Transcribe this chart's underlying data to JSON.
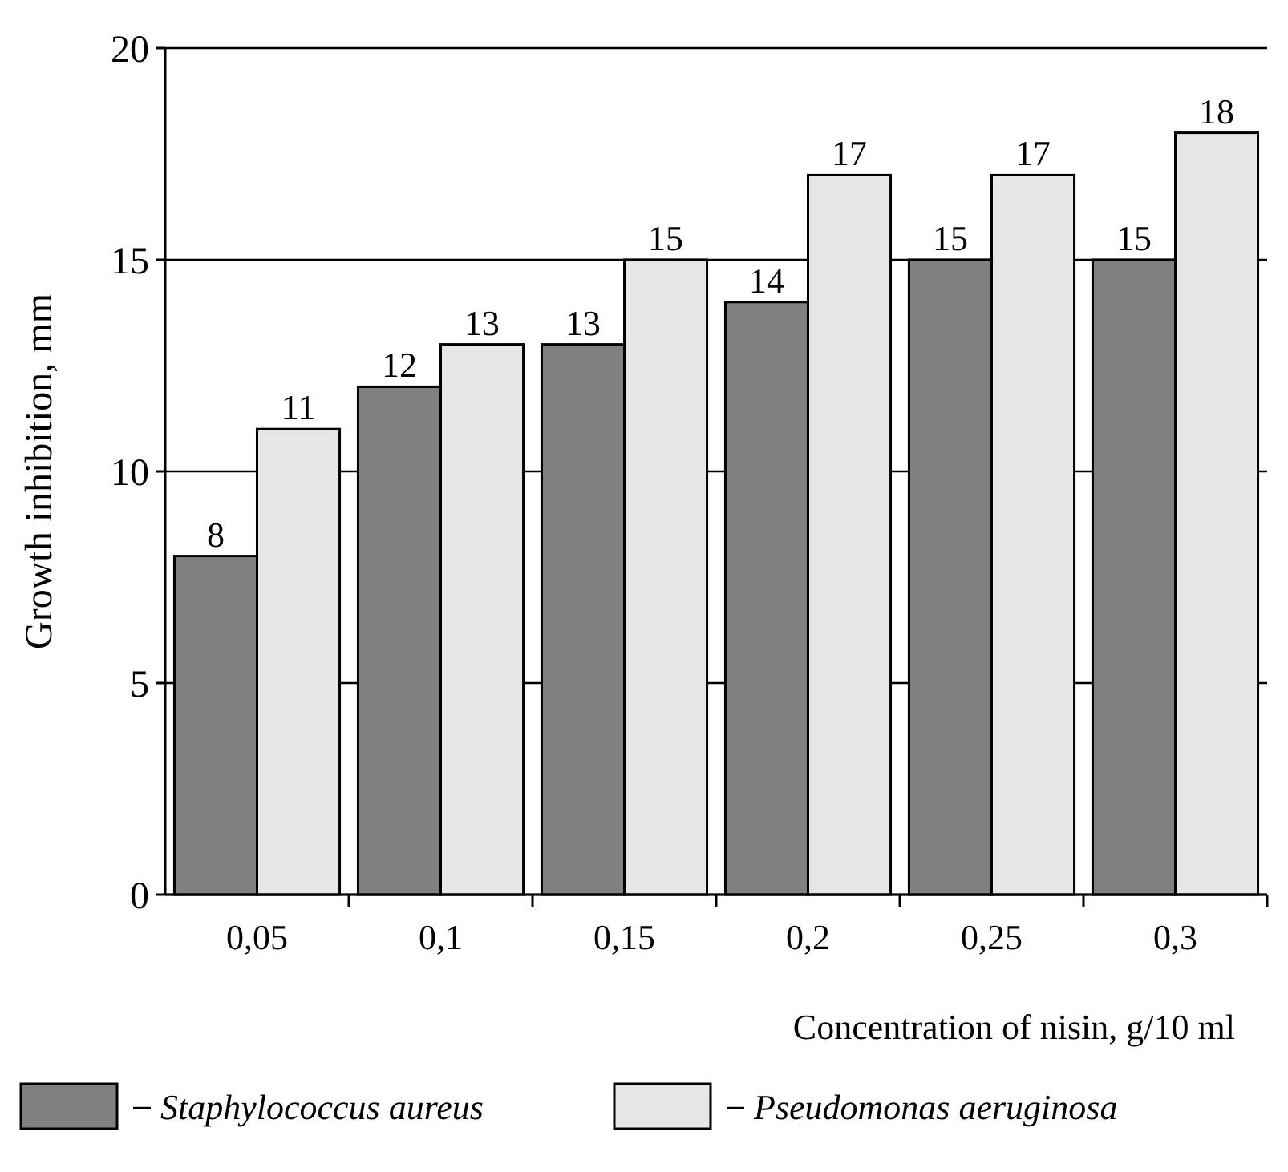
{
  "chart_data": {
    "type": "bar",
    "xlabel": "Concentration of nisin, g/10 ml",
    "ylabel": "Growth inhibition, mm",
    "categories": [
      "0,05",
      "0,1",
      "0,15",
      "0,2",
      "0,25",
      "0,3"
    ],
    "series": [
      {
        "name": "Staphylococcus aureus",
        "color": "#808080",
        "values": [
          8,
          12,
          13,
          14,
          15,
          15
        ]
      },
      {
        "name": "Pseudomonas aeruginosa",
        "color": "#e6e6e6",
        "values": [
          11,
          13,
          15,
          17,
          17,
          18
        ]
      }
    ],
    "ylim": [
      0,
      20
    ],
    "yticks": [
      0,
      5,
      10,
      15,
      20
    ],
    "grid": "y",
    "legend": "bottom",
    "data_labels": true
  }
}
